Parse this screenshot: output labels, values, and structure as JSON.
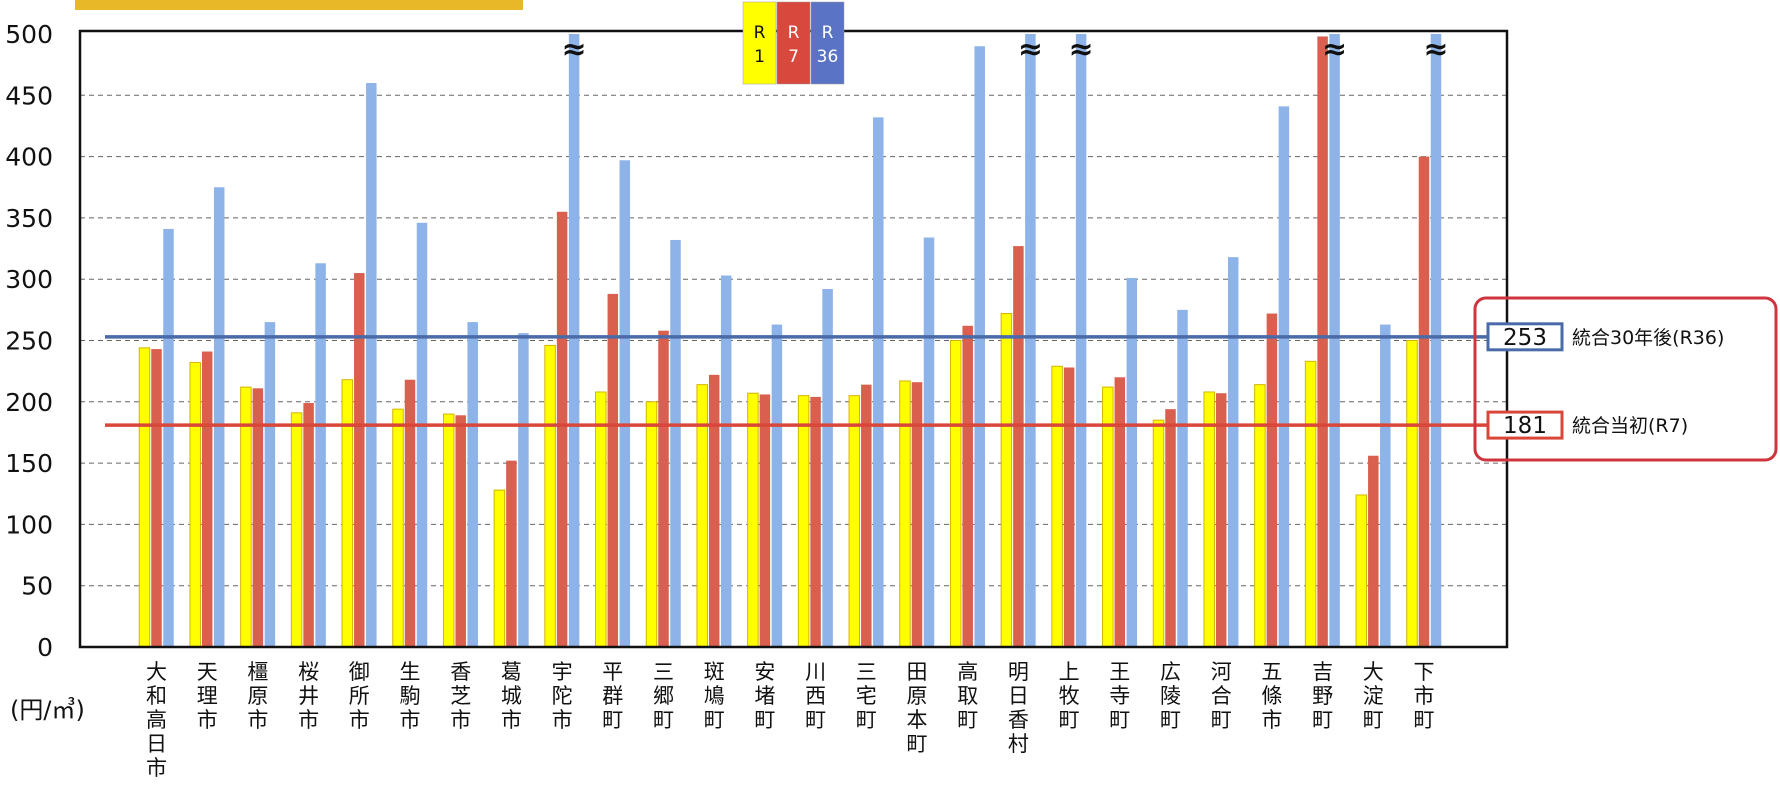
{
  "chart_data": {
    "type": "bar",
    "y_unit": "(円/㎥)",
    "ylim": [
      0,
      500
    ],
    "yticks": [
      0,
      50,
      100,
      150,
      200,
      250,
      300,
      350,
      400,
      450,
      500
    ],
    "grid": true,
    "legend_placement": "top-center",
    "legend": [
      {
        "label": "R\n1",
        "color": "#FFFF00"
      },
      {
        "label": "R\n7",
        "color": "#D9483C"
      },
      {
        "label": "R\n36",
        "color": "#5B73C4"
      }
    ],
    "categories": [
      "大和高日市",
      "天理市",
      "橿原市",
      "桜井市",
      "御所市",
      "生駒市",
      "香芝市",
      "葛城市",
      "宇陀市",
      "平群町",
      "三郷町",
      "斑鳩町",
      "安堵町",
      "川西町",
      "三宅町",
      "田原本町",
      "高取町",
      "明日香村",
      "上牧町",
      "王寺町",
      "広陵町",
      "河合町",
      "五條市",
      "吉野町",
      "大淀町",
      "下市町"
    ],
    "series": [
      {
        "name": "R1",
        "color": "#FFFF00",
        "values": [
          244,
          232,
          212,
          191,
          218,
          194,
          190,
          128,
          246,
          208,
          200,
          214,
          207,
          205,
          205,
          217,
          250,
          272,
          229,
          212,
          185,
          208,
          214,
          233,
          124,
          250
        ]
      },
      {
        "name": "R7",
        "color": "#D9604F",
        "values": [
          243,
          241,
          211,
          199,
          305,
          218,
          189,
          152,
          355,
          288,
          258,
          222,
          206,
          204,
          214,
          216,
          262,
          327,
          228,
          220,
          194,
          207,
          272,
          498,
          156,
          400
        ]
      },
      {
        "name": "R36",
        "color": "#8DB3E8",
        "values": [
          341,
          375,
          265,
          313,
          460,
          346,
          265,
          256,
          500,
          397,
          332,
          303,
          263,
          292,
          432,
          334,
          490,
          500,
          500,
          301,
          275,
          318,
          441,
          500,
          263,
          500
        ]
      }
    ],
    "break_marks": [
      "宇陀市",
      "明日香村",
      "上牧町",
      "吉野町",
      "下市町"
    ],
    "reference_lines": [
      {
        "value": 253,
        "label": "統合30年後(R36)",
        "value_label": "253",
        "color": "#4A6BA8"
      },
      {
        "value": 181,
        "label": "統合当初(R7)",
        "value_label": "181",
        "color": "#D9473A"
      }
    ]
  }
}
